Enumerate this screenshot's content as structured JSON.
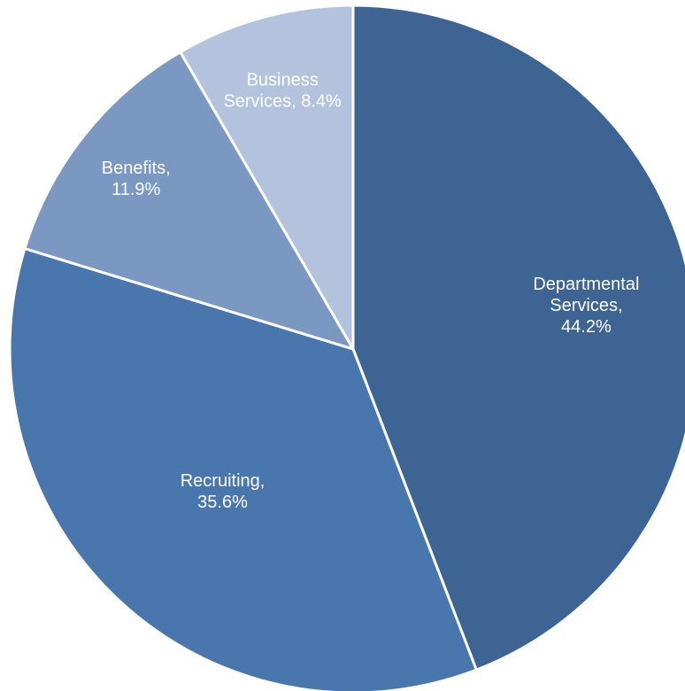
{
  "chart_data": {
    "type": "pie",
    "title": "",
    "slices": [
      {
        "name": "Departmental Services",
        "value": 44.2,
        "label_lines": [
          "Departmental",
          "Services,",
          "44.2%"
        ],
        "color": "#3E6494"
      },
      {
        "name": "Recruiting",
        "value": 35.6,
        "label_lines": [
          "Recruiting,",
          "35.6%"
        ],
        "color": "#4A76AE"
      },
      {
        "name": "Benefits",
        "value": 11.9,
        "label_lines": [
          "Benefits,",
          "11.9%"
        ],
        "color": "#7B98C3"
      },
      {
        "name": "Business Services",
        "value": 8.4,
        "label_lines": [
          "Business",
          "Services, 8.4%"
        ],
        "color": "#B3C3DE"
      }
    ],
    "start_angle": "12 o'clock",
    "direction": "clockwise",
    "slice_border_color": "#FFFFFF",
    "legend": "none"
  }
}
